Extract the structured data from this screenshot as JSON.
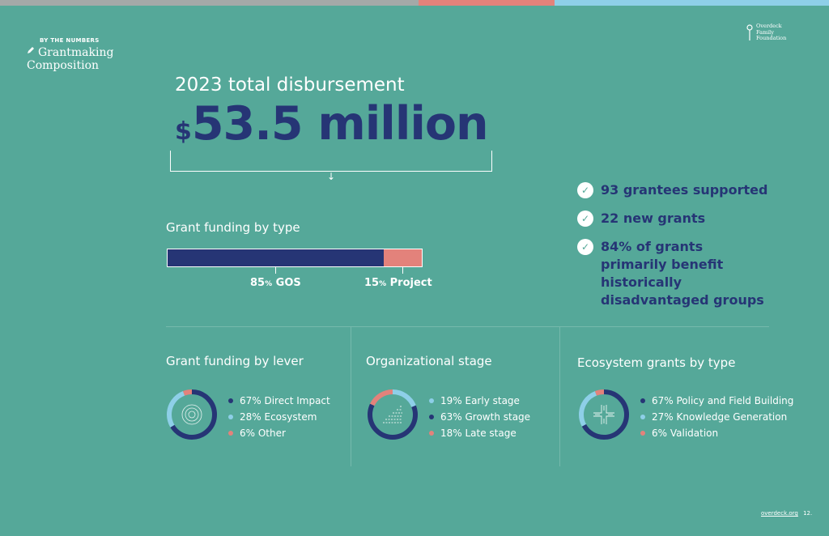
{
  "colors": {
    "background": "#55a899",
    "navy": "#263575",
    "coral": "#e3827b",
    "light_blue": "#8ecfe8",
    "top_gray": "#a4a9a8"
  },
  "header": {
    "eyebrow": "BY THE NUMBERS",
    "title_line1": "Grantmaking",
    "title_line2": "Composition",
    "icon": "pencil-icon",
    "brand_line1": "Overdeck",
    "brand_line2": "Family",
    "brand_line3": "Foundation"
  },
  "disbursement": {
    "label": "2023 total disbursement",
    "currency": "$",
    "amount": "53.5 million"
  },
  "funding_by_type": {
    "title": "Grant funding by type",
    "gos_share": 0.85,
    "gos_pct": "85",
    "gos_pct_sign": "%",
    "gos_label": "GOS",
    "project_pct": "15",
    "project_pct_sign": "%",
    "project_label": "Project"
  },
  "stats": [
    {
      "text": "93 grantees supported",
      "icon": "check-icon"
    },
    {
      "text": "22 new grants",
      "icon": "check-icon"
    },
    {
      "text": "84% of grants primarily benefit historically disadvantaged groups",
      "icon": "check-icon"
    }
  ],
  "lever": {
    "title": "Grant funding by lever",
    "icon": "target-rings-icon",
    "items": [
      {
        "label": "67% Direct Impact",
        "value": 67,
        "color": "#263575"
      },
      {
        "label": "28% Ecosystem",
        "value": 28,
        "color": "#8ecfe8"
      },
      {
        "label": "6% Other",
        "value": 6,
        "color": "#e3827b"
      }
    ]
  },
  "stage": {
    "title": "Organizational stage",
    "icon": "growth-dots-icon",
    "items": [
      {
        "label": "19% Early stage",
        "value": 19,
        "color": "#8ecfe8"
      },
      {
        "label": "63% Growth stage",
        "value": 63,
        "color": "#263575"
      },
      {
        "label": "18% Late stage",
        "value": 18,
        "color": "#e3827b"
      }
    ]
  },
  "ecosystem": {
    "title": "Ecosystem grants by type",
    "icon": "crossroads-icon",
    "items": [
      {
        "label": "67% Policy and Field Building",
        "value": 67,
        "color": "#263575"
      },
      {
        "label": "27% Knowledge Generation",
        "value": 27,
        "color": "#8ecfe8"
      },
      {
        "label": "6% Validation",
        "value": 6,
        "color": "#e3827b"
      }
    ]
  },
  "footer": {
    "link": "overdeck.org",
    "page": "12."
  }
}
